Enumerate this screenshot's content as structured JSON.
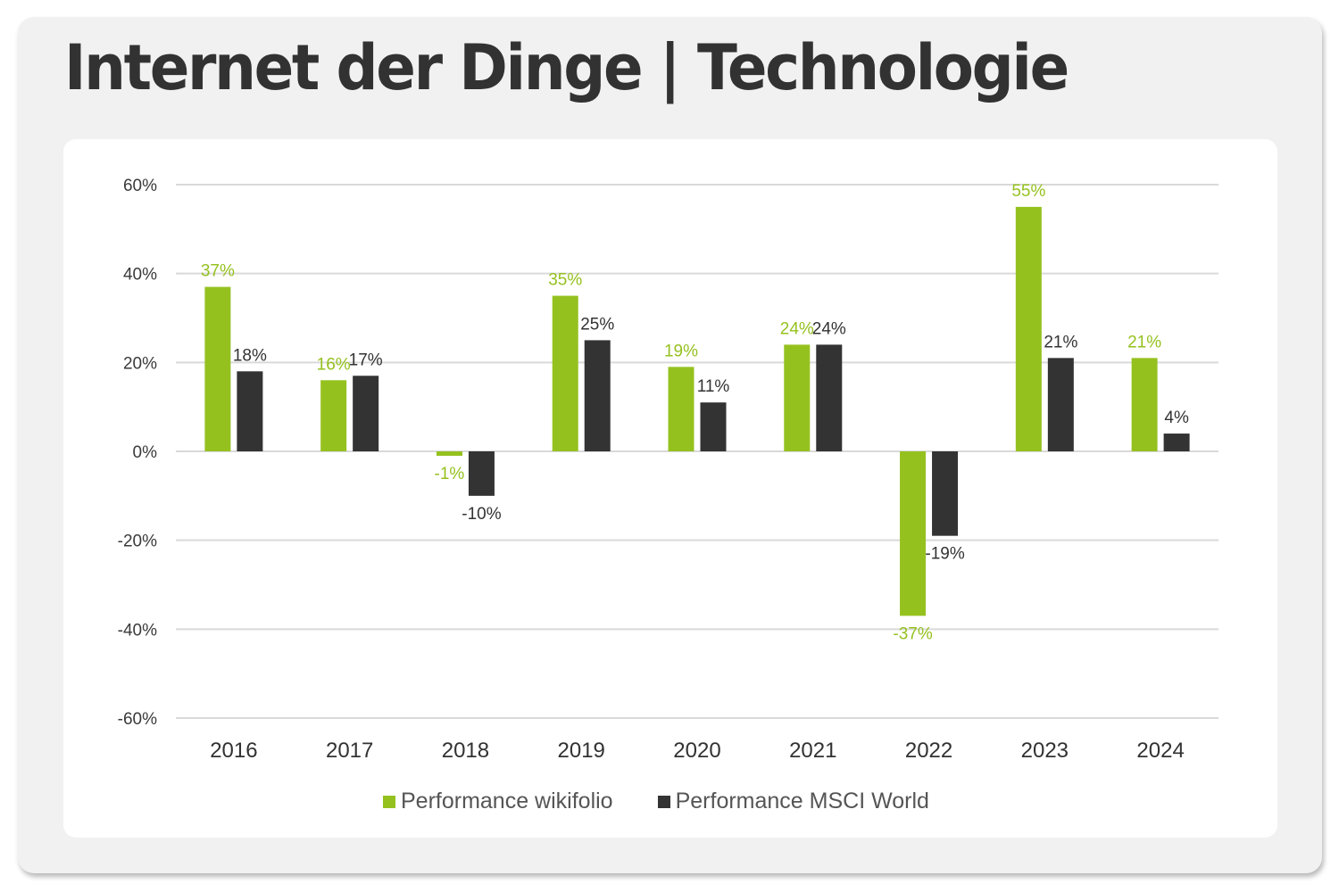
{
  "title": "Internet der Dinge | Technologie",
  "colors": {
    "wikifolio": "#95c11f",
    "msci": "#333333",
    "grid": "#d9d9d9",
    "wikifolio_label": "#95c11f",
    "msci_label": "#333333"
  },
  "legend": [
    {
      "label": "Performance wikifolio",
      "color": "#95c11f"
    },
    {
      "label": "Performance MSCI World",
      "color": "#333333"
    }
  ],
  "chart_data": {
    "type": "bar",
    "title": "Internet der Dinge | Technologie",
    "xlabel": "",
    "ylabel": "",
    "categories": [
      "2016",
      "2017",
      "2018",
      "2019",
      "2020",
      "2021",
      "2022",
      "2023",
      "2024"
    ],
    "series": [
      {
        "name": "Performance wikifolio",
        "values": [
          37,
          16,
          -1,
          35,
          19,
          24,
          -37,
          55,
          21
        ],
        "labels": [
          "37%",
          "16%",
          "-1%",
          "35%",
          "19%",
          "24%",
          "-37%",
          "55%",
          "21%"
        ]
      },
      {
        "name": "Performance MSCI World",
        "values": [
          18,
          17,
          -10,
          25,
          11,
          24,
          -19,
          21,
          4
        ],
        "labels": [
          "18%",
          "17%",
          "-10%",
          "25%",
          "11%",
          "24%",
          "-19%",
          "21%",
          "4%"
        ]
      }
    ],
    "ylim": [
      -60,
      60
    ],
    "yticks": [
      60,
      40,
      20,
      0,
      -20,
      -40,
      -60
    ],
    "ytick_labels": [
      "60%",
      "40%",
      "20%",
      "0%",
      "-20%",
      "-40%",
      "-60%"
    ],
    "grid": true,
    "legend_position": "bottom"
  }
}
